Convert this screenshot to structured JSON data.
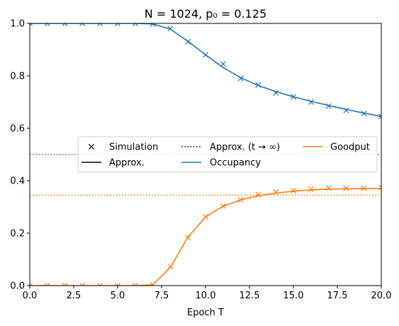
{
  "chart_data": {
    "type": "line",
    "title": "N = 1024, p₀ = 0.125",
    "xlabel": "Epoch T",
    "ylabel": "",
    "xlim": [
      0,
      20
    ],
    "ylim": [
      0,
      1
    ],
    "x_ticks": [
      "0.0",
      "2.5",
      "5.0",
      "7.5",
      "10.0",
      "12.5",
      "15.0",
      "17.5",
      "20.0"
    ],
    "y_ticks": [
      "0.0",
      "0.2",
      "0.4",
      "0.6",
      "0.8",
      "1.0"
    ],
    "colors": {
      "occupancy": "#1f77b4",
      "goodput": "#ff7f0e",
      "legend_black": "#000000"
    },
    "legend": {
      "placement": "center-left",
      "entries": [
        "Simulation",
        "Approx. (t → ∞)",
        "Goodput",
        "Approx.",
        "Occupancy"
      ]
    },
    "series": [
      {
        "name": "Occupancy",
        "kind": "approx",
        "x": [
          0,
          1,
          2,
          3,
          4,
          5,
          6,
          7,
          8,
          9,
          10,
          11,
          12,
          13,
          14,
          15,
          16,
          17,
          18,
          19,
          20
        ],
        "values": [
          1.0,
          1.0,
          1.0,
          1.0,
          1.0,
          1.0,
          1.0,
          0.998,
          0.978,
          0.932,
          0.88,
          0.832,
          0.793,
          0.763,
          0.74,
          0.72,
          0.703,
          0.687,
          0.672,
          0.658,
          0.645
        ]
      },
      {
        "name": "Occupancy",
        "kind": "simulation",
        "x": [
          0,
          1,
          2,
          3,
          4,
          5,
          6,
          7,
          8,
          9,
          10,
          11,
          12,
          13,
          14,
          15,
          16,
          17,
          18,
          19,
          20
        ],
        "values": [
          1.0,
          1.0,
          1.0,
          1.0,
          1.0,
          1.0,
          1.0,
          0.998,
          0.98,
          0.93,
          0.88,
          0.845,
          0.79,
          0.765,
          0.735,
          0.72,
          0.7,
          0.685,
          0.668,
          0.656,
          0.645
        ]
      },
      {
        "name": "Occupancy",
        "kind": "asymptote",
        "value": 0.5
      },
      {
        "name": "Goodput",
        "kind": "approx",
        "x": [
          0,
          1,
          2,
          3,
          4,
          5,
          6,
          7,
          8,
          9,
          10,
          11,
          12,
          13,
          14,
          15,
          16,
          17,
          18,
          19,
          20
        ],
        "values": [
          0,
          0,
          0,
          0,
          0,
          0,
          0,
          0.003,
          0.07,
          0.185,
          0.262,
          0.303,
          0.327,
          0.343,
          0.353,
          0.36,
          0.365,
          0.368,
          0.369,
          0.37,
          0.37
        ]
      },
      {
        "name": "Goodput",
        "kind": "simulation",
        "x": [
          0,
          1,
          2,
          3,
          4,
          5,
          6,
          7,
          8,
          9,
          10,
          11,
          12,
          13,
          14,
          15,
          16,
          17,
          18,
          19,
          20
        ],
        "values": [
          0,
          0,
          0,
          0,
          0,
          0,
          0,
          0.003,
          0.073,
          0.182,
          0.262,
          0.303,
          0.327,
          0.347,
          0.357,
          0.362,
          0.368,
          0.372,
          0.371,
          0.371,
          0.374
        ]
      },
      {
        "name": "Goodput",
        "kind": "asymptote",
        "value": 0.345
      }
    ]
  }
}
